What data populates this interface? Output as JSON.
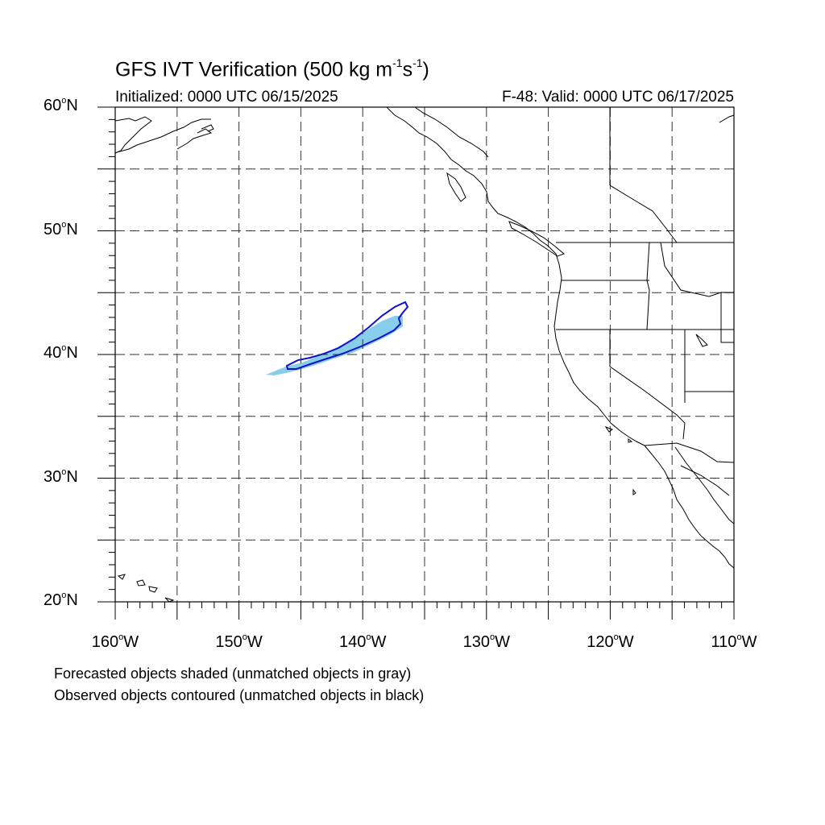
{
  "title": {
    "text": "GFS IVT Verification (500 kg m",
    "exp1": "-1",
    "mid": "s",
    "exp2": "-1",
    "close": ")"
  },
  "initialized": "Initialized: 0000 UTC 06/15/2025",
  "valid": "F-48: Valid: 0000 UTC 06/17/2025",
  "map": {
    "lon_range": [
      -160,
      -110
    ],
    "lat_range": [
      20,
      60
    ],
    "grid": "dashed every 5 degrees",
    "land_outline_color": "#000000"
  },
  "lat_labels": [
    {
      "value": 60,
      "num": "60",
      "dir": "N"
    },
    {
      "value": 50,
      "num": "50",
      "dir": "N"
    },
    {
      "value": 40,
      "num": "40",
      "dir": "N"
    },
    {
      "value": 30,
      "num": "30",
      "dir": "N"
    },
    {
      "value": 20,
      "num": "20",
      "dir": "N"
    }
  ],
  "lon_labels": [
    {
      "value": -160,
      "num": "160",
      "dir": "W"
    },
    {
      "value": -150,
      "num": "150",
      "dir": "W"
    },
    {
      "value": -140,
      "num": "140",
      "dir": "W"
    },
    {
      "value": -130,
      "num": "130",
      "dir": "W"
    },
    {
      "value": -120,
      "num": "120",
      "dir": "W"
    },
    {
      "value": -110,
      "num": "110",
      "dir": "W"
    }
  ],
  "objects": {
    "forecast_fill_color": "#87CEEB",
    "observed_contour_color": "#1010D0"
  },
  "notes": {
    "line1": "Forecasted objects shaded (unmatched objects in gray)",
    "line2": "Observed objects contoured (unmatched objects in black)"
  }
}
